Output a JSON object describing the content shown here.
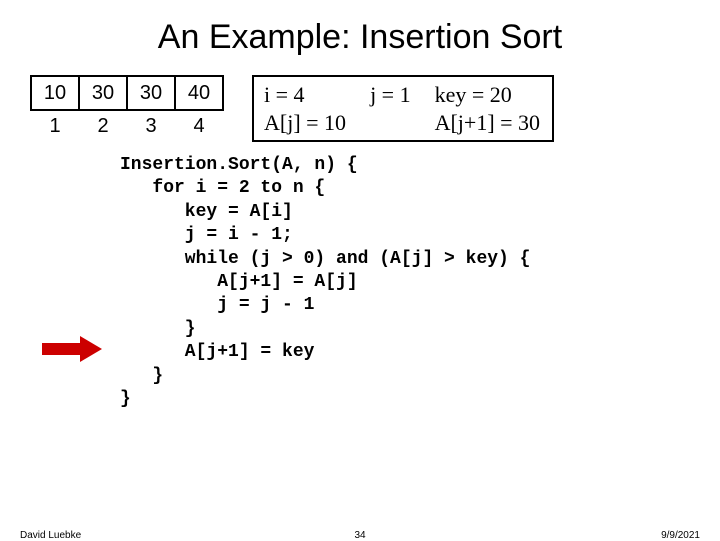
{
  "title": "An Example: Insertion Sort",
  "array": {
    "cells": [
      "10",
      "30",
      "30",
      "40"
    ],
    "indices": [
      "1",
      "2",
      "3",
      "4"
    ]
  },
  "vars": {
    "i": "i = 4",
    "j": "j = 1",
    "key": "key = 20",
    "Aj": "A[j] = 10",
    "empty": "",
    "Aj1": "A[j+1] = 30"
  },
  "code": "Insertion.Sort(A, n) {\n   for i = 2 to n {\n      key = A[i]\n      j = i - 1;\n      while (j > 0) and (A[j] > key) {\n         A[j+1] = A[j]\n         j = j - 1\n      }\n      A[j+1] = key\n   }\n}",
  "footer": {
    "author": "David Luebke",
    "page": "34",
    "date": "9/9/2021"
  },
  "colors": {
    "arrow": "#cc0000",
    "border": "#000000",
    "text": "#000000",
    "background": "#ffffff"
  }
}
